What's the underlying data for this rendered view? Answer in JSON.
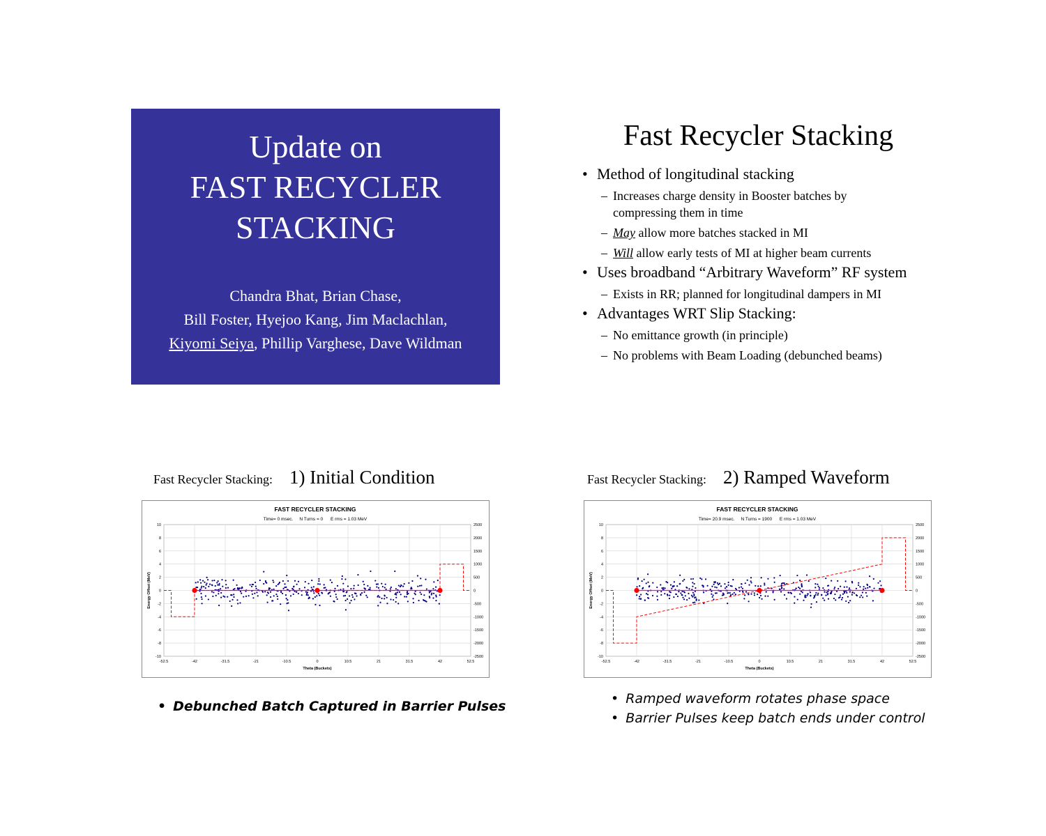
{
  "slide1": {
    "title_lines": [
      "Update on",
      "FAST  RECYCLER",
      "STACKING"
    ],
    "authors_line1": "Chandra Bhat, Brian Chase,",
    "authors_line2": "Bill Foster, Hyejoo Kang, Jim Maclachlan,",
    "authors_line3_underlined": "Kiyomi Seiya",
    "authors_line3_rest": ", Phillip Varghese, Dave Wildman",
    "background_color": "#353399"
  },
  "slide2": {
    "title": "Fast Recycler Stacking",
    "bullet1": "Method of longitudinal stacking",
    "bullet1_sub1_line1": "Increases charge density in Booster batches by",
    "bullet1_sub1_line2": "compressing them in time",
    "bullet1_sub2_em": "May",
    "bullet1_sub2_rest": " allow more batches stacked in MI",
    "bullet1_sub3_em": "Will",
    "bullet1_sub3_rest": " allow early tests of MI at higher beam currents",
    "bullet2": "Uses broadband “Arbitrary Waveform” RF system",
    "bullet2_sub1": "Exists in RR; planned for longitudinal dampers in MI",
    "bullet3": "Advantages WRT Slip Stacking:",
    "bullet3_sub1": "No emittance growth (in principle)",
    "bullet3_sub2": "No problems with Beam Loading (debunched beams)",
    "bullet_char": "•",
    "dash_char": "–"
  },
  "slide3": {
    "caption_small": "Fast Recycler Stacking:",
    "caption_big": "1)  Initial Condition",
    "note": "Debunched Batch Captured in Barrier Pulses"
  },
  "slide4": {
    "caption_small": "Fast Recycler Stacking:",
    "caption_big": "2)  Ramped Waveform",
    "note1": "Ramped waveform rotates phase space",
    "note2": "Barrier Pulses keep batch ends under control"
  },
  "chart_data": [
    {
      "type": "scatter",
      "title": "FAST RECYCLER STACKING",
      "subtitle": "Time= 0 msec.     N Turns = 0      E rms = 1.03 MeV",
      "xlabel": "Theta (Buckets)",
      "ylabel": "Energy Offset (MeV)",
      "x_ticks": [
        "-52.5",
        "-42",
        "-31.5",
        "-21",
        "-10.5",
        "0",
        "10.5",
        "21",
        "31.5",
        "42",
        "52.5"
      ],
      "y_ticks": [
        "10",
        "8",
        "6",
        "4",
        "2",
        "0",
        "-2",
        "-4",
        "-6",
        "-8",
        "-10"
      ],
      "y2_ticks": [
        "2500",
        "2000",
        "1500",
        "1000",
        "500",
        "0",
        "-500",
        "-1000",
        "-1500",
        "-2000",
        "-2500"
      ],
      "xlim": [
        -52.5,
        52.5
      ],
      "ylim": [
        -10,
        10
      ],
      "y2lim": [
        -2500,
        2500
      ],
      "grid": true,
      "particles": {
        "x_range": [
          -42,
          42
        ],
        "rms_MeV": 1.03,
        "count": 380,
        "seed": 7,
        "color": "#00007f"
      },
      "separatrix_markers": [
        [
          -42,
          0
        ],
        [
          0,
          0
        ],
        [
          42,
          0
        ]
      ],
      "waveform": {
        "color": "#ff0000",
        "x": [
          -52.5,
          -50,
          -50,
          -42,
          -42,
          42,
          42,
          50,
          50,
          52.5
        ],
        "y2": [
          0,
          0,
          -1000,
          -1000,
          0,
          0,
          1000,
          1000,
          0,
          0
        ]
      }
    },
    {
      "type": "scatter",
      "title": "FAST RECYCLER STACKING",
      "subtitle": "Time= 20.9 msec.     N Turns = 1900      E rms = 1.03 MeV",
      "xlabel": "Theta (Buckets)",
      "ylabel": "Energy Offset (MeV)",
      "x_ticks": [
        "-52.5",
        "-42",
        "-31.5",
        "-21",
        "-10.5",
        "0",
        "10.5",
        "21",
        "31.5",
        "42",
        "52.5"
      ],
      "y_ticks": [
        "10",
        "8",
        "6",
        "4",
        "2",
        "0",
        "-2",
        "-4",
        "-6",
        "-8",
        "-10"
      ],
      "y2_ticks": [
        "2500",
        "2000",
        "1500",
        "1000",
        "500",
        "0",
        "-500",
        "-1000",
        "-1500",
        "-2000",
        "-2500"
      ],
      "xlim": [
        -52.5,
        52.5
      ],
      "ylim": [
        -10,
        10
      ],
      "y2lim": [
        -2500,
        2500
      ],
      "grid": true,
      "particles": {
        "x_range": [
          -42,
          42
        ],
        "rms_MeV": 1.03,
        "count": 380,
        "seed": 19,
        "color": "#00007f"
      },
      "separatrix_markers": [
        [
          -42,
          0
        ],
        [
          0,
          0
        ],
        [
          42,
          0
        ]
      ],
      "waveform": {
        "color": "#ff0000",
        "x": [
          -52.5,
          -50,
          -50,
          -42,
          -42,
          42,
          42,
          50,
          50,
          52.5
        ],
        "y2": [
          0,
          0,
          -2000,
          -2000,
          -1000,
          1000,
          2000,
          2000,
          0,
          0
        ]
      }
    }
  ]
}
